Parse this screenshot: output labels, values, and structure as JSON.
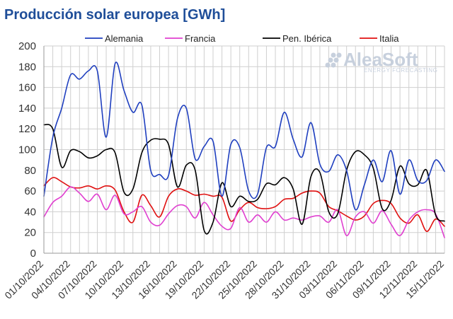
{
  "chart_data": {
    "type": "line",
    "title": "Producción solar europea [GWh]",
    "xlabel": "",
    "ylabel": "",
    "ylim": [
      0,
      200
    ],
    "y_ticks": [
      0,
      20,
      40,
      60,
      80,
      100,
      120,
      140,
      160,
      180,
      200
    ],
    "grid": true,
    "legend_position": "top",
    "x_dates": [
      "01/10/2022",
      "02/10/2022",
      "03/10/2022",
      "04/10/2022",
      "05/10/2022",
      "06/10/2022",
      "07/10/2022",
      "08/10/2022",
      "09/10/2022",
      "10/10/2022",
      "11/10/2022",
      "12/10/2022",
      "13/10/2022",
      "14/10/2022",
      "15/10/2022",
      "16/10/2022",
      "17/10/2022",
      "18/10/2022",
      "19/10/2022",
      "20/10/2022",
      "21/10/2022",
      "22/10/2022",
      "23/10/2022",
      "24/10/2022",
      "25/10/2022",
      "26/10/2022",
      "27/10/2022",
      "28/10/2022",
      "29/10/2022",
      "30/10/2022",
      "31/10/2022",
      "01/11/2022",
      "02/11/2022",
      "03/11/2022",
      "04/11/2022",
      "05/11/2022",
      "06/11/2022",
      "07/11/2022",
      "08/11/2022",
      "09/11/2022",
      "10/11/2022",
      "11/11/2022",
      "12/11/2022",
      "13/11/2022",
      "14/11/2022",
      "15/11/2022"
    ],
    "x_tick_labels": [
      "01/10/2022",
      "04/10/2022",
      "07/10/2022",
      "10/10/2022",
      "13/10/2022",
      "16/10/2022",
      "19/10/2022",
      "22/10/2022",
      "25/10/2022",
      "28/10/2022",
      "31/10/2022",
      "03/11/2022",
      "06/11/2022",
      "09/11/2022",
      "12/11/2022",
      "15/11/2022"
    ],
    "series": [
      {
        "name": "Alemania",
        "color": "#1f3fbf",
        "values": [
          55,
          112,
          140,
          172,
          168,
          176,
          176,
          112,
          183,
          157,
          136,
          143,
          80,
          76,
          75,
          130,
          140,
          91,
          103,
          108,
          55,
          105,
          102,
          60,
          57,
          102,
          103,
          136,
          110,
          93,
          126,
          86,
          79,
          95,
          80,
          42,
          66,
          90,
          69,
          99,
          57,
          90,
          70,
          70,
          90,
          79
        ]
      },
      {
        "name": "Francia",
        "color": "#e040d0",
        "values": [
          35,
          49,
          55,
          64,
          58,
          50,
          57,
          42,
          56,
          38,
          40,
          45,
          30,
          27,
          38,
          46,
          45,
          34,
          49,
          37,
          26,
          24,
          44,
          30,
          37,
          30,
          40,
          32,
          34,
          32,
          35,
          36,
          30,
          42,
          17,
          35,
          40,
          29,
          41,
          28,
          17,
          32,
          40,
          42,
          38,
          15
        ]
      },
      {
        "name": "Pen. Ibérica",
        "color": "#000000",
        "values": [
          124,
          120,
          83,
          99,
          98,
          92,
          94,
          100,
          97,
          59,
          62,
          97,
          109,
          110,
          105,
          64,
          85,
          80,
          22,
          30,
          68,
          45,
          55,
          50,
          52,
          67,
          66,
          73,
          62,
          28,
          74,
          78,
          40,
          38,
          80,
          98,
          95,
          82,
          43,
          51,
          84,
          67,
          66,
          80,
          37,
          31
        ]
      },
      {
        "name": "Italia",
        "color": "#e01010",
        "values": [
          65,
          73,
          69,
          64,
          63,
          65,
          62,
          65,
          61,
          40,
          30,
          56,
          46,
          35,
          55,
          62,
          60,
          56,
          57,
          55,
          54,
          31,
          42,
          49,
          44,
          43,
          45,
          52,
          53,
          58,
          60,
          58,
          45,
          41,
          36,
          32,
          36,
          48,
          51,
          48,
          34,
          29,
          37,
          21,
          33,
          26
        ]
      }
    ]
  },
  "watermark": {
    "brand": "AleaSoft",
    "tagline": "ENERGY FORECASTING"
  }
}
